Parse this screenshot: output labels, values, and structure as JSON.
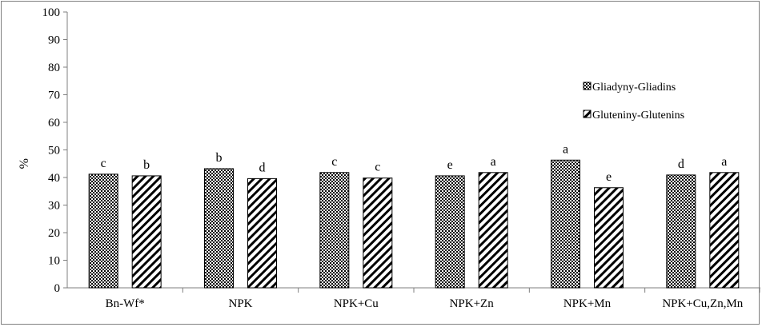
{
  "chart_data": {
    "type": "bar",
    "ylabel": "%",
    "ylim": [
      0,
      100
    ],
    "yticks": [
      "0",
      "10",
      "20",
      "30",
      "40",
      "50",
      "60",
      "70",
      "80",
      "90",
      "100"
    ],
    "categories": [
      "Bn-Wf*",
      "NPK",
      "NPK+Cu",
      "NPK+Zn",
      "NPK+Mn",
      "NPK+Cu,Zn,Mn"
    ],
    "series": [
      {
        "name": "Gliadyny-Gliadins",
        "values": [
          41.2,
          43.2,
          41.8,
          40.6,
          46.3,
          40.9
        ],
        "letters": [
          "c",
          "b",
          "c",
          "e",
          "a",
          "d"
        ]
      },
      {
        "name": "Gluteniny-Glutenins",
        "values": [
          40.6,
          39.6,
          39.8,
          41.8,
          36.3,
          41.8
        ],
        "letters": [
          "b",
          "d",
          "c",
          "a",
          "e",
          "a"
        ]
      }
    ],
    "legend_position": "right",
    "grid": false
  }
}
